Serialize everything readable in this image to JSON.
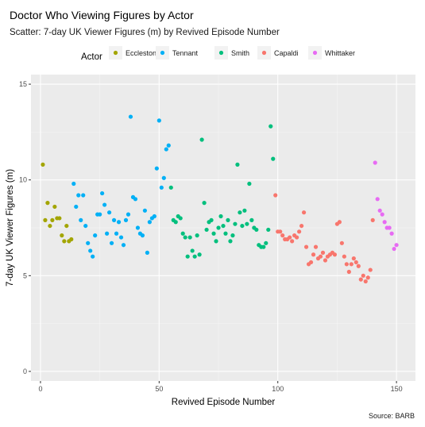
{
  "chart_data": {
    "type": "scatter",
    "title": "Doctor Who Viewing Figures by Actor",
    "subtitle": "Scatter: 7-day UK Viewer Figures (m) by Revived Episode Number",
    "xlabel": "Revived Episode Number",
    "ylabel": "7-day UK Viewer Figures (m)",
    "caption": "Source: BARB",
    "legend_title": "Actor",
    "legend_position": "top",
    "grid": true,
    "xlim": [
      -4,
      158
    ],
    "ylim": [
      -0.5,
      15.5
    ],
    "xticks": [
      0,
      50,
      100,
      150
    ],
    "yticks": [
      0,
      5,
      10,
      15
    ],
    "series": [
      {
        "name": "Eccleston",
        "color": "#A3A500",
        "points": [
          [
            1,
            10.8
          ],
          [
            2,
            7.9
          ],
          [
            3,
            8.8
          ],
          [
            4,
            7.6
          ],
          [
            5,
            7.9
          ],
          [
            6,
            8.6
          ],
          [
            7,
            8.0
          ],
          [
            8,
            8.0
          ],
          [
            9,
            7.1
          ],
          [
            10,
            6.8
          ],
          [
            11,
            7.6
          ],
          [
            12,
            6.8
          ],
          [
            13,
            6.9
          ]
        ]
      },
      {
        "name": "Tennant",
        "color": "#00B0F6",
        "points": [
          [
            14,
            9.8
          ],
          [
            15,
            8.6
          ],
          [
            16,
            9.2
          ],
          [
            17,
            7.9
          ],
          [
            18,
            9.2
          ],
          [
            19,
            7.6
          ],
          [
            20,
            6.7
          ],
          [
            21,
            6.3
          ],
          [
            22,
            6.0
          ],
          [
            23,
            7.1
          ],
          [
            24,
            8.2
          ],
          [
            25,
            8.2
          ],
          [
            26,
            9.3
          ],
          [
            27,
            8.7
          ],
          [
            28,
            7.2
          ],
          [
            29,
            8.3
          ],
          [
            30,
            6.7
          ],
          [
            31,
            7.9
          ],
          [
            32,
            7.2
          ],
          [
            33,
            7.8
          ],
          [
            34,
            7.0
          ],
          [
            35,
            6.6
          ],
          [
            36,
            7.9
          ],
          [
            37,
            8.2
          ],
          [
            38,
            13.3
          ],
          [
            39,
            9.1
          ],
          [
            40,
            9.0
          ],
          [
            41,
            7.5
          ],
          [
            42,
            7.2
          ],
          [
            43,
            7.1
          ],
          [
            44,
            8.4
          ],
          [
            45,
            6.2
          ],
          [
            46,
            7.8
          ],
          [
            47,
            8.0
          ],
          [
            48,
            8.1
          ],
          [
            49,
            10.6
          ],
          [
            50,
            13.1
          ],
          [
            51,
            9.6
          ],
          [
            52,
            10.1
          ],
          [
            53,
            11.6
          ],
          [
            54,
            11.8
          ]
        ]
      },
      {
        "name": "Smith",
        "color": "#00BF7D",
        "points": [
          [
            55,
            9.6
          ],
          [
            56,
            7.9
          ],
          [
            57,
            7.8
          ],
          [
            58,
            8.1
          ],
          [
            59,
            8.0
          ],
          [
            60,
            7.2
          ],
          [
            61,
            7.0
          ],
          [
            62,
            6.0
          ],
          [
            63,
            7.0
          ],
          [
            64,
            6.3
          ],
          [
            65,
            6.0
          ],
          [
            66,
            7.1
          ],
          [
            67,
            6.1
          ],
          [
            68,
            12.1
          ],
          [
            69,
            8.8
          ],
          [
            70,
            7.4
          ],
          [
            71,
            7.8
          ],
          [
            72,
            7.9
          ],
          [
            73,
            7.2
          ],
          [
            74,
            6.8
          ],
          [
            75,
            7.5
          ],
          [
            76,
            8.1
          ],
          [
            77,
            7.6
          ],
          [
            78,
            7.2
          ],
          [
            79,
            7.9
          ],
          [
            80,
            6.8
          ],
          [
            81,
            7.1
          ],
          [
            82,
            7.7
          ],
          [
            83,
            10.8
          ],
          [
            84,
            8.3
          ],
          [
            85,
            7.6
          ],
          [
            86,
            8.4
          ],
          [
            87,
            7.7
          ],
          [
            88,
            9.8
          ],
          [
            89,
            7.9
          ],
          [
            90,
            7.5
          ],
          [
            91,
            7.4
          ],
          [
            92,
            6.6
          ],
          [
            93,
            6.5
          ],
          [
            94,
            6.5
          ],
          [
            95,
            6.7
          ],
          [
            96,
            7.4
          ],
          [
            97,
            12.8
          ],
          [
            98,
            11.1
          ]
        ]
      },
      {
        "name": "Capaldi",
        "color": "#F8766D",
        "points": [
          [
            99,
            9.2
          ],
          [
            100,
            7.3
          ],
          [
            101,
            7.3
          ],
          [
            102,
            7.1
          ],
          [
            103,
            6.9
          ],
          [
            104,
            6.9
          ],
          [
            105,
            7.0
          ],
          [
            106,
            6.8
          ],
          [
            107,
            7.1
          ],
          [
            108,
            7.0
          ],
          [
            109,
            7.3
          ],
          [
            110,
            7.6
          ],
          [
            111,
            8.3
          ],
          [
            112,
            6.5
          ],
          [
            113,
            5.6
          ],
          [
            114,
            5.7
          ],
          [
            115,
            6.1
          ],
          [
            116,
            6.5
          ],
          [
            117,
            5.9
          ],
          [
            118,
            6.0
          ],
          [
            119,
            6.2
          ],
          [
            120,
            5.8
          ],
          [
            121,
            6.0
          ],
          [
            122,
            6.1
          ],
          [
            123,
            6.2
          ],
          [
            124,
            6.1
          ],
          [
            125,
            7.7
          ],
          [
            126,
            7.8
          ],
          [
            127,
            6.7
          ],
          [
            128,
            6.0
          ],
          [
            129,
            5.6
          ],
          [
            130,
            5.2
          ],
          [
            131,
            5.6
          ],
          [
            132,
            5.9
          ],
          [
            133,
            5.7
          ],
          [
            134,
            5.5
          ],
          [
            135,
            4.8
          ],
          [
            136,
            5.0
          ],
          [
            137,
            4.7
          ],
          [
            138,
            4.9
          ],
          [
            139,
            5.3
          ],
          [
            140,
            7.9
          ]
        ]
      },
      {
        "name": "Whittaker",
        "color": "#E76BF3",
        "points": [
          [
            141,
            10.9
          ],
          [
            142,
            9.0
          ],
          [
            143,
            8.4
          ],
          [
            144,
            8.2
          ],
          [
            145,
            7.8
          ],
          [
            146,
            7.5
          ],
          [
            147,
            7.5
          ],
          [
            148,
            7.2
          ],
          [
            149,
            6.4
          ],
          [
            150,
            6.6
          ]
        ]
      }
    ]
  }
}
